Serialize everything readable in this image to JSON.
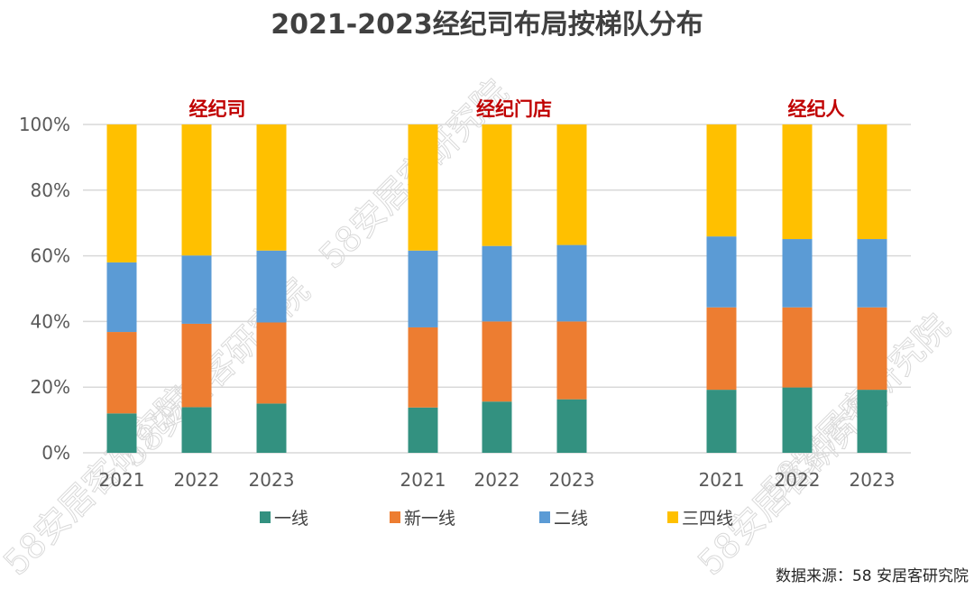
{
  "chart_data": {
    "type": "bar",
    "stacked": true,
    "percent_stacked": true,
    "title": "2021-2023经纪司布局按梯队分布",
    "xlabel": "",
    "ylabel": "",
    "ylim": [
      0,
      100
    ],
    "y_ticks": [
      "0%",
      "20%",
      "40%",
      "60%",
      "80%",
      "100%"
    ],
    "y_tick_values": [
      0,
      20,
      40,
      60,
      80,
      100
    ],
    "grid": true,
    "legend_position": "bottom",
    "groups": [
      {
        "name": "经纪司",
        "categories": [
          "2021",
          "2022",
          "2023"
        ]
      },
      {
        "name": "经纪门店",
        "categories": [
          "2021",
          "2022",
          "2023"
        ]
      },
      {
        "name": "经纪人",
        "categories": [
          "2021",
          "2022",
          "2023"
        ]
      }
    ],
    "series": [
      {
        "name": "一线",
        "color": "#339180",
        "values": [
          [
            12.0,
            13.9,
            15.0
          ],
          [
            13.8,
            15.6,
            16.3
          ],
          [
            19.2,
            19.9,
            19.2
          ]
        ]
      },
      {
        "name": "新一线",
        "color": "#ED7D31",
        "values": [
          [
            24.8,
            25.4,
            24.7
          ],
          [
            24.4,
            24.4,
            23.7
          ],
          [
            25.1,
            24.4,
            25.1
          ]
        ]
      },
      {
        "name": "二线",
        "color": "#5B9BD5",
        "values": [
          [
            21.2,
            20.8,
            21.9
          ],
          [
            23.4,
            23.0,
            23.3
          ],
          [
            21.6,
            20.8,
            20.8
          ]
        ]
      },
      {
        "name": "三四线",
        "color": "#FFC000",
        "values": [
          [
            42.0,
            39.9,
            38.4
          ],
          [
            38.4,
            37.0,
            36.7
          ],
          [
            34.1,
            34.9,
            34.9
          ]
        ]
      }
    ]
  },
  "source_note": "数据来源：58 安居客研究院",
  "watermark_text": "58安居客研究院"
}
